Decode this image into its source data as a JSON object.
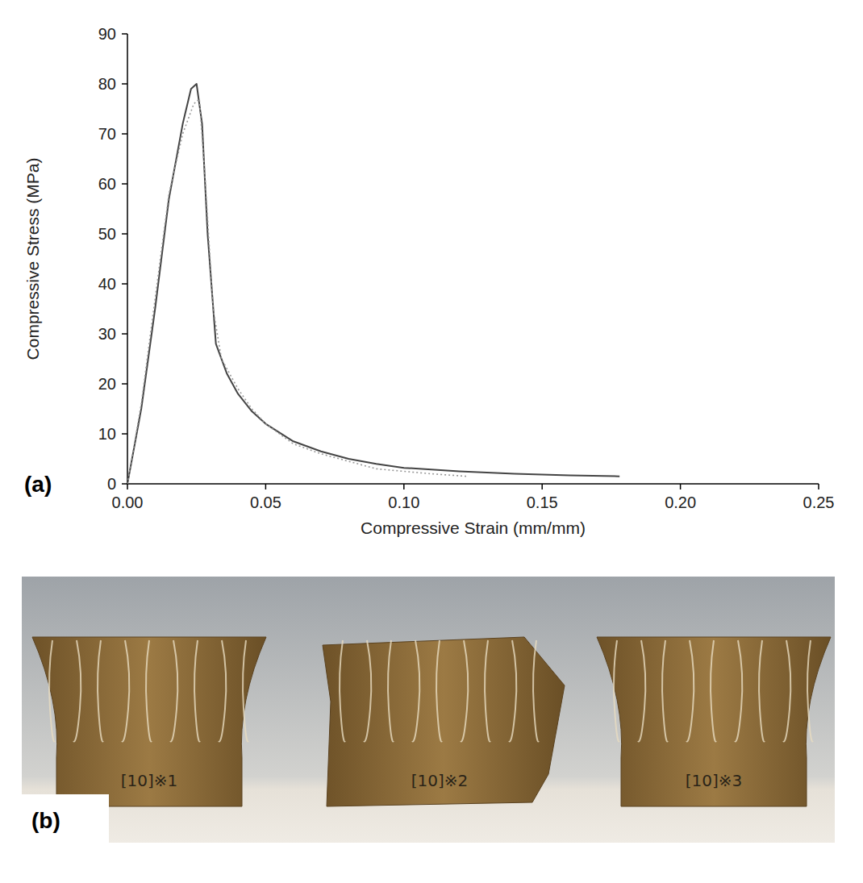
{
  "chart_data": {
    "type": "line",
    "panel_label": "(a)",
    "xlabel": "Compressive Strain (mm/mm)",
    "ylabel": "Compressive Stress (MPa)",
    "xlim": [
      0,
      0.25
    ],
    "ylim": [
      0,
      90
    ],
    "xticks": [
      {
        "value": 0,
        "label": "0.00"
      },
      0.05,
      {
        "value": 0.1,
        "label": "0.10"
      },
      0.15,
      {
        "value": 0.2,
        "label": "0.20"
      },
      0.25
    ],
    "yticks": [
      0,
      10,
      20,
      30,
      40,
      50,
      60,
      70,
      80,
      90
    ],
    "grid": false,
    "series": [
      {
        "color": "#444444",
        "line_style": "solid",
        "x": [
          0,
          0.005,
          0.01,
          0.015,
          0.02,
          0.023,
          0.025,
          0.027,
          0.029,
          0.032,
          0.036,
          0.04,
          0.045,
          0.05,
          0.06,
          0.07,
          0.08,
          0.09,
          0.1,
          0.12,
          0.14,
          0.16,
          0.178
        ],
        "values": [
          0,
          15,
          35,
          57,
          72,
          79,
          80,
          72,
          50,
          28,
          22,
          18,
          14.5,
          12,
          8.5,
          6.5,
          5,
          4,
          3.2,
          2.5,
          2,
          1.7,
          1.5
        ]
      },
      {
        "color": "#999999",
        "line_style": "dotted",
        "x": [
          0,
          0.005,
          0.01,
          0.015,
          0.02,
          0.024,
          0.026,
          0.028,
          0.031,
          0.034,
          0.04,
          0.045,
          0.05,
          0.06,
          0.07,
          0.08,
          0.09,
          0.1,
          0.11,
          0.123
        ],
        "values": [
          0,
          16,
          37,
          58,
          70,
          76,
          77,
          62,
          35,
          25,
          19,
          15,
          12,
          8,
          6,
          4.5,
          3,
          2.5,
          2,
          1.5
        ]
      }
    ]
  },
  "photo": {
    "panel_label": "(b)",
    "specimens": [
      "[10]※1",
      "[10]※2",
      "[10]※3"
    ]
  }
}
